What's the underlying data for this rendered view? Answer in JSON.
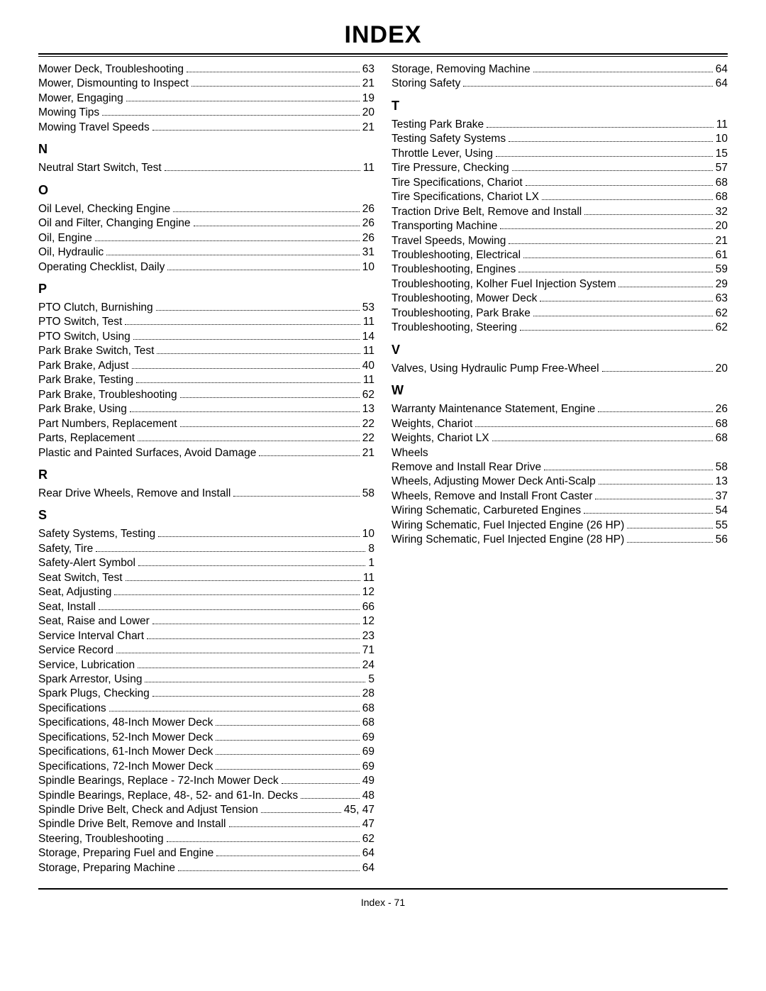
{
  "title": "INDEX",
  "footer": "Index - 71",
  "left": [
    {
      "type": "entry",
      "label": "Mower Deck, Troubleshooting",
      "pg": "63"
    },
    {
      "type": "entry",
      "label": "Mower, Dismounting to Inspect",
      "pg": "21"
    },
    {
      "type": "entry",
      "label": "Mower, Engaging",
      "pg": "19"
    },
    {
      "type": "entry",
      "label": "Mowing Tips",
      "pg": "20"
    },
    {
      "type": "entry",
      "label": "Mowing Travel Speeds",
      "pg": "21"
    },
    {
      "type": "letter",
      "label": "N"
    },
    {
      "type": "entry",
      "label": "Neutral Start Switch, Test",
      "pg": "11"
    },
    {
      "type": "letter",
      "label": "O"
    },
    {
      "type": "entry",
      "label": "Oil Level, Checking Engine",
      "pg": "26"
    },
    {
      "type": "entry",
      "label": "Oil and Filter, Changing Engine",
      "pg": "26"
    },
    {
      "type": "entry",
      "label": "Oil, Engine",
      "pg": "26"
    },
    {
      "type": "entry",
      "label": "Oil, Hydraulic",
      "pg": "31"
    },
    {
      "type": "entry",
      "label": "Operating Checklist, Daily",
      "pg": "10"
    },
    {
      "type": "letter",
      "label": "P"
    },
    {
      "type": "entry",
      "label": "PTO Clutch, Burnishing",
      "pg": "53"
    },
    {
      "type": "entry",
      "label": "PTO Switch, Test",
      "pg": "11"
    },
    {
      "type": "entry",
      "label": "PTO Switch, Using",
      "pg": "14"
    },
    {
      "type": "entry",
      "label": "Park Brake Switch, Test",
      "pg": "11"
    },
    {
      "type": "entry",
      "label": "Park Brake, Adjust",
      "pg": "40"
    },
    {
      "type": "entry",
      "label": "Park Brake, Testing",
      "pg": "11"
    },
    {
      "type": "entry",
      "label": "Park Brake, Troubleshooting",
      "pg": "62"
    },
    {
      "type": "entry",
      "label": "Park Brake, Using",
      "pg": "13"
    },
    {
      "type": "entry",
      "label": "Part Numbers, Replacement",
      "pg": "22"
    },
    {
      "type": "entry",
      "label": "Parts, Replacement",
      "pg": "22"
    },
    {
      "type": "entry",
      "label": "Plastic and Painted Surfaces, Avoid Damage",
      "pg": "21"
    },
    {
      "type": "letter",
      "label": "R"
    },
    {
      "type": "entry",
      "label": "Rear Drive Wheels, Remove and Install",
      "pg": "58"
    },
    {
      "type": "letter",
      "label": "S"
    },
    {
      "type": "entry",
      "label": "Safety Systems, Testing",
      "pg": "10"
    },
    {
      "type": "entry",
      "label": "Safety, Tire",
      "pg": "8"
    },
    {
      "type": "entry",
      "label": "Safety-Alert Symbol",
      "pg": "1"
    },
    {
      "type": "entry",
      "label": "Seat Switch, Test",
      "pg": "11"
    },
    {
      "type": "entry",
      "label": "Seat, Adjusting",
      "pg": "12"
    },
    {
      "type": "entry",
      "label": "Seat, Install",
      "pg": "66"
    },
    {
      "type": "entry",
      "label": "Seat, Raise and Lower",
      "pg": "12"
    },
    {
      "type": "entry",
      "label": "Service Interval Chart",
      "pg": "23"
    },
    {
      "type": "entry",
      "label": "Service Record",
      "pg": "71"
    },
    {
      "type": "entry",
      "label": "Service, Lubrication",
      "pg": "24"
    },
    {
      "type": "entry",
      "label": "Spark Arrestor, Using",
      "pg": "5"
    },
    {
      "type": "entry",
      "label": "Spark Plugs, Checking",
      "pg": "28"
    },
    {
      "type": "entry",
      "label": "Specifications",
      "pg": "68"
    },
    {
      "type": "entry",
      "label": "Specifications, 48-Inch Mower Deck",
      "pg": "68"
    },
    {
      "type": "entry",
      "label": "Specifications, 52-Inch Mower Deck",
      "pg": "69"
    },
    {
      "type": "entry",
      "label": "Specifications, 61-Inch Mower Deck",
      "pg": "69"
    },
    {
      "type": "entry",
      "label": "Specifications, 72-Inch Mower Deck",
      "pg": "69"
    },
    {
      "type": "entry",
      "label": "Spindle Bearings, Replace - 72-Inch Mower Deck",
      "pg": "49"
    },
    {
      "type": "entry",
      "label": "Spindle Bearings, Replace, 48-, 52- and 61-In. Decks",
      "pg": "48"
    },
    {
      "type": "entry",
      "label": "Spindle Drive Belt, Check and Adjust Tension",
      "pg": "45, 47"
    },
    {
      "type": "entry",
      "label": "Spindle Drive Belt, Remove and Install",
      "pg": "47"
    },
    {
      "type": "entry",
      "label": "Steering, Troubleshooting",
      "pg": "62"
    },
    {
      "type": "entry",
      "label": "Storage, Preparing Fuel and Engine",
      "pg": "64"
    },
    {
      "type": "entry",
      "label": "Storage, Preparing Machine",
      "pg": "64"
    }
  ],
  "right": [
    {
      "type": "entry",
      "label": "Storage, Removing Machine",
      "pg": "64"
    },
    {
      "type": "entry",
      "label": "Storing Safety",
      "pg": "64"
    },
    {
      "type": "letter",
      "label": "T"
    },
    {
      "type": "entry",
      "label": "Testing Park Brake",
      "pg": "11"
    },
    {
      "type": "entry",
      "label": "Testing Safety Systems",
      "pg": "10"
    },
    {
      "type": "entry",
      "label": "Throttle Lever, Using",
      "pg": "15"
    },
    {
      "type": "entry",
      "label": "Tire Pressure, Checking",
      "pg": "57"
    },
    {
      "type": "entry",
      "label": "Tire Specifications, Chariot",
      "pg": "68"
    },
    {
      "type": "entry",
      "label": "Tire Specifications, Chariot LX",
      "pg": "68"
    },
    {
      "type": "entry",
      "label": "Traction Drive Belt, Remove and Install",
      "pg": "32"
    },
    {
      "type": "entry",
      "label": "Transporting Machine",
      "pg": "20"
    },
    {
      "type": "entry",
      "label": "Travel Speeds, Mowing",
      "pg": "21"
    },
    {
      "type": "entry",
      "label": "Troubleshooting, Electrical",
      "pg": "61"
    },
    {
      "type": "entry",
      "label": "Troubleshooting, Engines",
      "pg": "59"
    },
    {
      "type": "entry",
      "label": "Troubleshooting, Kolher Fuel Injection System",
      "pg": "29"
    },
    {
      "type": "entry",
      "label": "Troubleshooting, Mower Deck",
      "pg": "63"
    },
    {
      "type": "entry",
      "label": "Troubleshooting, Park Brake",
      "pg": "62"
    },
    {
      "type": "entry",
      "label": "Troubleshooting, Steering",
      "pg": "62"
    },
    {
      "type": "letter",
      "label": "V"
    },
    {
      "type": "entry",
      "label": "Valves, Using Hydraulic Pump Free-Wheel",
      "pg": "20"
    },
    {
      "type": "letter",
      "label": "W"
    },
    {
      "type": "entry",
      "label": "Warranty Maintenance Statement, Engine",
      "pg": "26"
    },
    {
      "type": "entry",
      "label": "Weights, Chariot",
      "pg": "68"
    },
    {
      "type": "entry",
      "label": "Weights, Chariot LX",
      "pg": "68"
    },
    {
      "type": "plain",
      "label": "Wheels"
    },
    {
      "type": "entry",
      "label": "Remove and Install Rear Drive",
      "pg": "58"
    },
    {
      "type": "entry",
      "label": "Wheels, Adjusting Mower Deck Anti-Scalp",
      "pg": "13"
    },
    {
      "type": "entry",
      "label": "Wheels, Remove and Install Front Caster",
      "pg": "37"
    },
    {
      "type": "entry",
      "label": "Wiring Schematic, Carbureted Engines",
      "pg": "54"
    },
    {
      "type": "entry",
      "label": "Wiring Schematic, Fuel Injected Engine (26 HP)",
      "pg": "55"
    },
    {
      "type": "entry",
      "label": "Wiring Schematic, Fuel Injected Engine (28 HP)",
      "pg": "56"
    }
  ]
}
